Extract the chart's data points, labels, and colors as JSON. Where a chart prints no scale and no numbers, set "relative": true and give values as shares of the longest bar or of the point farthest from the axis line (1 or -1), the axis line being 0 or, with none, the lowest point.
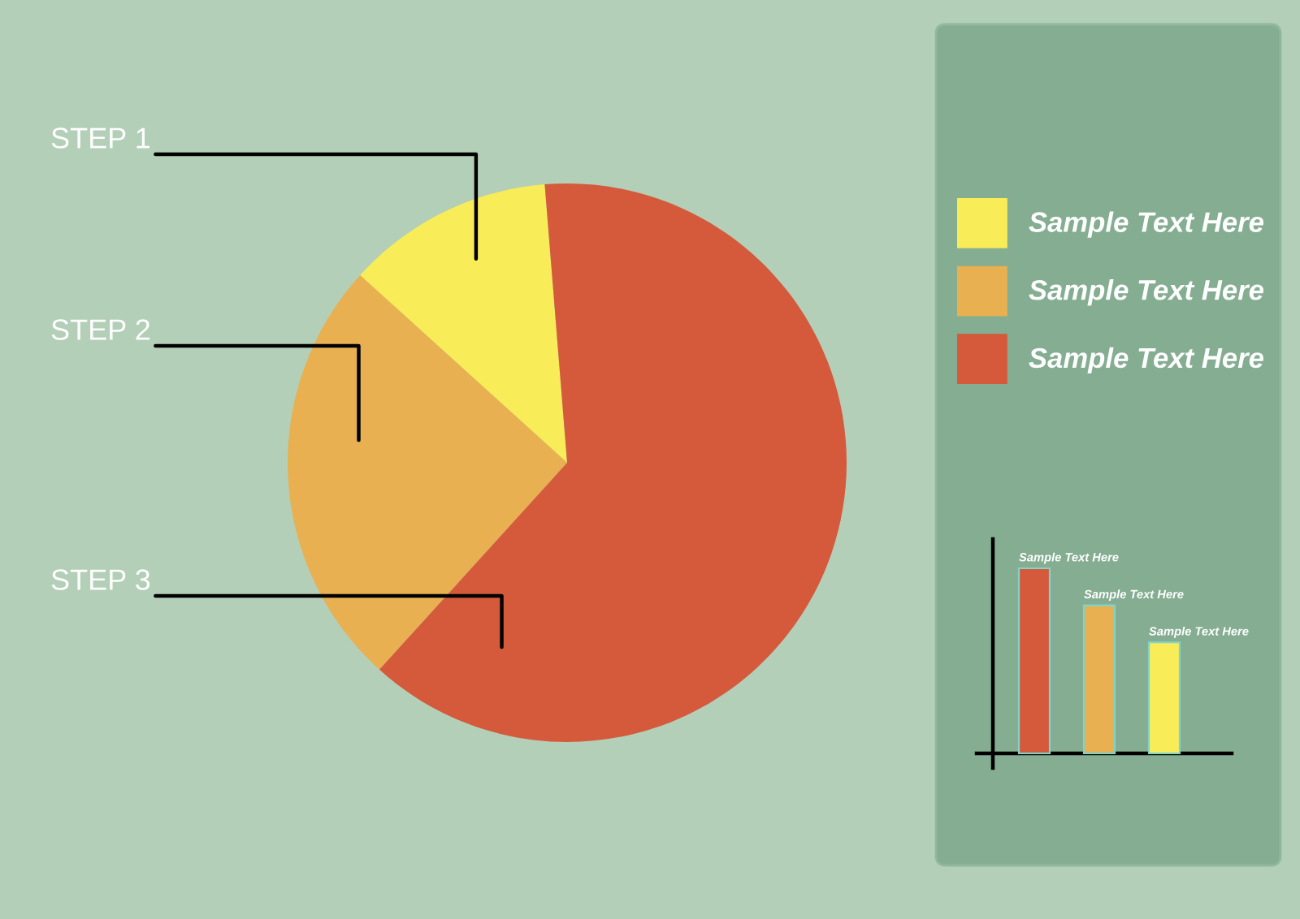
{
  "chart_data": [
    {
      "type": "pie",
      "categories": [
        "Sample Text Here",
        "Sample Text Here",
        "Sample Text Here"
      ],
      "values": [
        12,
        25,
        63
      ],
      "colors": [
        "#f8ec58",
        "#e8b050",
        "#d55a3c"
      ],
      "legend": "right",
      "annotations": [
        "STEP 1",
        "STEP 2",
        "STEP 3"
      ]
    },
    {
      "type": "bar",
      "categories": [
        null,
        null,
        null
      ],
      "values": [
        1,
        0.8,
        0.6
      ],
      "colors": [
        "#d55a3c",
        "#e8b050",
        "#f8ec58"
      ],
      "relative": true,
      "annotations": [
        "Sample Text Here",
        "Sample Text Here",
        "Sample Text Here"
      ]
    }
  ]
}
